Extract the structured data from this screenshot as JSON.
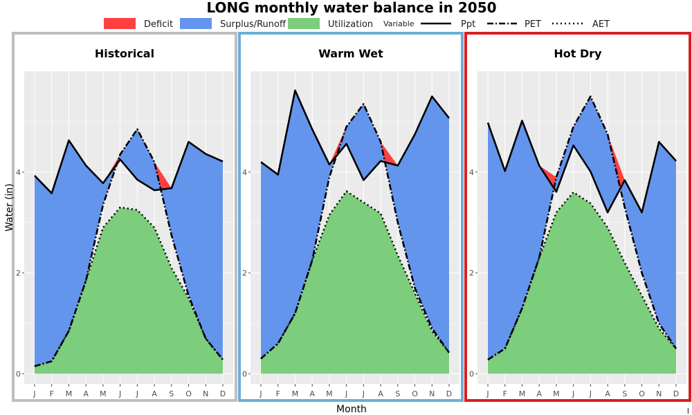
{
  "title": "LONG monthly water balance in 2050",
  "legend": {
    "fill_items": [
      {
        "label": "Deficit",
        "color": "#ff4040"
      },
      {
        "label": "Surplus/Runoff",
        "color": "#6495ed"
      },
      {
        "label": "Utilization",
        "color": "#7ccd7c"
      }
    ],
    "variable_title": "Variable",
    "line_items": [
      {
        "label": "Ppt",
        "style": "solid"
      },
      {
        "label": "PET",
        "style": "dashdot"
      },
      {
        "label": "AET",
        "style": "dotted"
      }
    ]
  },
  "xlabel": "Month",
  "ylabel": "Water (in)",
  "footnote": "I",
  "chart_data": {
    "type": "area",
    "x_tick_labels": [
      "J",
      "F",
      "M",
      "A",
      "M",
      "J",
      "J",
      "A",
      "S",
      "O",
      "N",
      "D"
    ],
    "y_tick_labels": [
      "0",
      "2",
      "4"
    ],
    "ylim": [
      -0.2,
      6.0
    ],
    "grid": true,
    "legend_position": "top",
    "panels": [
      {
        "name": "Historical",
        "border_color": "#bebebe",
        "series": [
          {
            "name": "Ppt",
            "values": [
              3.93,
              3.58,
              4.63,
              4.13,
              3.78,
              4.25,
              3.85,
              3.64,
              3.68,
              4.6,
              4.36,
              4.21
            ]
          },
          {
            "name": "PET",
            "values": [
              0.15,
              0.25,
              0.85,
              1.85,
              3.35,
              4.35,
              4.85,
              4.2,
              2.75,
              1.55,
              0.7,
              0.28
            ]
          },
          {
            "name": "AET",
            "values": [
              0.15,
              0.25,
              0.85,
              1.85,
              2.9,
              3.3,
              3.25,
              2.9,
              2.1,
              1.5,
              0.7,
              0.28
            ]
          }
        ]
      },
      {
        "name": "Warm Wet",
        "border_color": "#6baed6",
        "series": [
          {
            "name": "Ppt",
            "values": [
              4.2,
              3.95,
              5.62,
              4.85,
              4.15,
              4.56,
              3.84,
              4.22,
              4.13,
              4.75,
              5.5,
              5.07
            ]
          },
          {
            "name": "PET",
            "values": [
              0.3,
              0.6,
              1.2,
              2.25,
              3.9,
              4.9,
              5.35,
              4.6,
              3.0,
              1.7,
              0.9,
              0.42
            ]
          },
          {
            "name": "AET",
            "values": [
              0.3,
              0.6,
              1.2,
              2.25,
              3.15,
              3.62,
              3.4,
              3.18,
              2.35,
              1.6,
              0.85,
              0.42
            ]
          }
        ]
      },
      {
        "name": "Hot Dry",
        "border_color": "#d62020",
        "series": [
          {
            "name": "Ppt",
            "values": [
              4.98,
              4.02,
              5.02,
              4.13,
              3.61,
              4.53,
              4.01,
              3.2,
              3.84,
              3.2,
              4.6,
              4.22
            ]
          },
          {
            "name": "PET",
            "values": [
              0.28,
              0.5,
              1.3,
              2.3,
              3.9,
              4.9,
              5.5,
              4.75,
              3.3,
              2.0,
              1.0,
              0.5
            ]
          },
          {
            "name": "AET",
            "values": [
              0.28,
              0.5,
              1.3,
              2.3,
              3.2,
              3.6,
              3.38,
              2.9,
              2.2,
              1.55,
              0.9,
              0.5
            ]
          }
        ]
      }
    ]
  }
}
